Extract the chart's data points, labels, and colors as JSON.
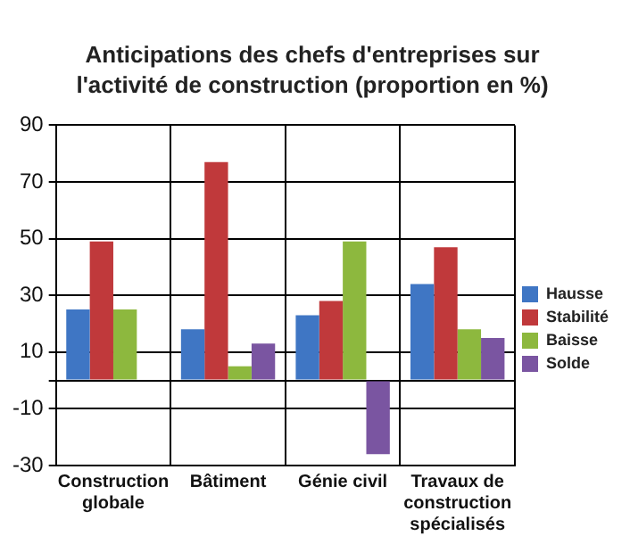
{
  "chart_data": {
    "type": "bar",
    "title": "Anticipations  des chefs d'entreprises sur l'activité  de construction (proportion en %)",
    "categories": [
      "Construction globale",
      "Bâtiment",
      "Génie civil",
      "Travaux de construction spécialisés"
    ],
    "series": [
      {
        "name": "Hausse",
        "color": "#3f76c4",
        "values": [
          25,
          18,
          23,
          34
        ]
      },
      {
        "name": "Stabilité",
        "color": "#c0393b",
        "values": [
          49,
          77,
          28,
          47
        ]
      },
      {
        "name": "Baisse",
        "color": "#8db83e",
        "values": [
          25,
          5,
          49,
          18
        ]
      },
      {
        "name": "Solde",
        "color": "#7a55a1",
        "values": [
          0,
          13,
          -26,
          15
        ]
      }
    ],
    "ylim": [
      -30,
      90
    ],
    "yticks": [
      -30,
      -10,
      {
        "value": 0,
        "label": null
      },
      10,
      30,
      50,
      70,
      90
    ],
    "grid": true,
    "legend": "right"
  }
}
